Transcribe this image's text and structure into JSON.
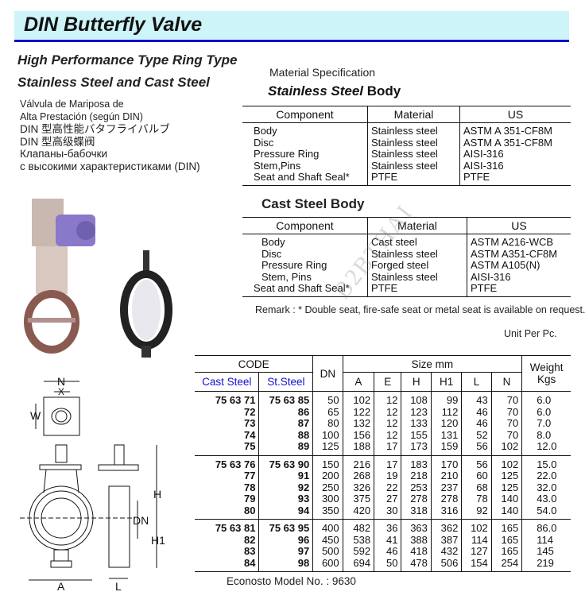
{
  "title": "DIN Butterfly Valve",
  "subtitle1": "High Performance Type  Ring Type",
  "subtitle2": "Stainless Steel and Cast Steel",
  "multilang": [
    "Válvula de Mariposa de",
    "Alta Prestación (según DIN)",
    "DIN 型高性能バタフライバルブ",
    "DIN 型高级蝶阀",
    "Клапаны-бабочки",
    "с высокими характеристиками (DIN)"
  ],
  "material_spec_label": "Material Specification",
  "ss_body": {
    "title_italic": "Stainless Steel",
    "title_rest": " Body",
    "headers": [
      "Component",
      "Material",
      "US"
    ],
    "rows": [
      [
        "Body",
        "Stainless steel",
        "ASTM A 351-CF8M"
      ],
      [
        "Disc",
        "Stainless steel",
        "ASTM A 351-CF8M"
      ],
      [
        "Pressure Ring",
        "Stainless steel",
        "AISI-316"
      ],
      [
        "Stem,Pins",
        "Stainless steel",
        "AISI-316"
      ],
      [
        "Seat and Shaft Seal*",
        "PTFE",
        "PTFE"
      ]
    ]
  },
  "cs_body": {
    "title": "Cast Steel Body",
    "headers": [
      "Component",
      "Material",
      "US"
    ],
    "rows": [
      [
        "Body",
        "Cast steel",
        "ASTM A216-WCB"
      ],
      [
        "Disc",
        "Stainless steel",
        "ASTM A351-CF8M"
      ],
      [
        "Pressure Ring",
        "Forged steel",
        "ASTM A105(N)"
      ],
      [
        "Stem, Pins",
        "Stainless steel",
        "AISI-316"
      ],
      [
        "Seat and Shaft Seal*",
        "PTFE",
        "PTFE"
      ]
    ]
  },
  "remark": "Remark : * Double seat, fire-safe seat or metal seat is available on request.",
  "unit": "Unit Per Pc.",
  "watermark": "B2BTHAI",
  "drawing_labels": {
    "N": "N",
    "X": "X",
    "W": "W",
    "H": "H",
    "H1": "H1",
    "DN": "DN",
    "A": "A",
    "L": "L"
  },
  "dim_table": {
    "code_header": "CODE",
    "cast_steel": "Cast Steel",
    "st_steel": "St.Steel",
    "dn": "DN",
    "size_header": "Size mm",
    "size_cols": [
      "A",
      "E",
      "H",
      "H1",
      "L",
      "N"
    ],
    "weight": "Weight Kgs",
    "groups": [
      [
        [
          "75 63 71",
          "75 63 85",
          "50",
          "102",
          "12",
          "108",
          "99",
          "43",
          "70",
          "6.0"
        ],
        [
          "72",
          "86",
          "65",
          "122",
          "12",
          "123",
          "112",
          "46",
          "70",
          "6.0"
        ],
        [
          "73",
          "87",
          "80",
          "132",
          "12",
          "133",
          "120",
          "46",
          "70",
          "7.0"
        ],
        [
          "74",
          "88",
          "100",
          "156",
          "12",
          "155",
          "131",
          "52",
          "70",
          "8.0"
        ],
        [
          "75",
          "89",
          "125",
          "188",
          "17",
          "173",
          "159",
          "56",
          "102",
          "12.0"
        ]
      ],
      [
        [
          "75 63 76",
          "75 63 90",
          "150",
          "216",
          "17",
          "183",
          "170",
          "56",
          "102",
          "15.0"
        ],
        [
          "77",
          "91",
          "200",
          "268",
          "19",
          "218",
          "210",
          "60",
          "125",
          "22.0"
        ],
        [
          "78",
          "92",
          "250",
          "326",
          "22",
          "253",
          "237",
          "68",
          "125",
          "32.0"
        ],
        [
          "79",
          "93",
          "300",
          "375",
          "27",
          "278",
          "278",
          "78",
          "140",
          "43.0"
        ],
        [
          "80",
          "94",
          "350",
          "420",
          "30",
          "318",
          "316",
          "92",
          "140",
          "54.0"
        ]
      ],
      [
        [
          "75 63 81",
          "75 63 95",
          "400",
          "482",
          "36",
          "363",
          "362",
          "102",
          "165",
          "86.0"
        ],
        [
          "82",
          "96",
          "450",
          "538",
          "41",
          "388",
          "387",
          "114",
          "165",
          "114"
        ],
        [
          "83",
          "97",
          "500",
          "592",
          "46",
          "418",
          "432",
          "127",
          "165",
          "145"
        ],
        [
          "84",
          "98",
          "600",
          "694",
          "50",
          "478",
          "506",
          "154",
          "254",
          "219"
        ]
      ]
    ]
  },
  "model_no": "Econosto Model No. : 9630",
  "colors": {
    "title_bg": "#cdf4f8",
    "title_rule": "#1010c8",
    "code_header": "#1010d0",
    "actuator": "#8a78c8"
  }
}
